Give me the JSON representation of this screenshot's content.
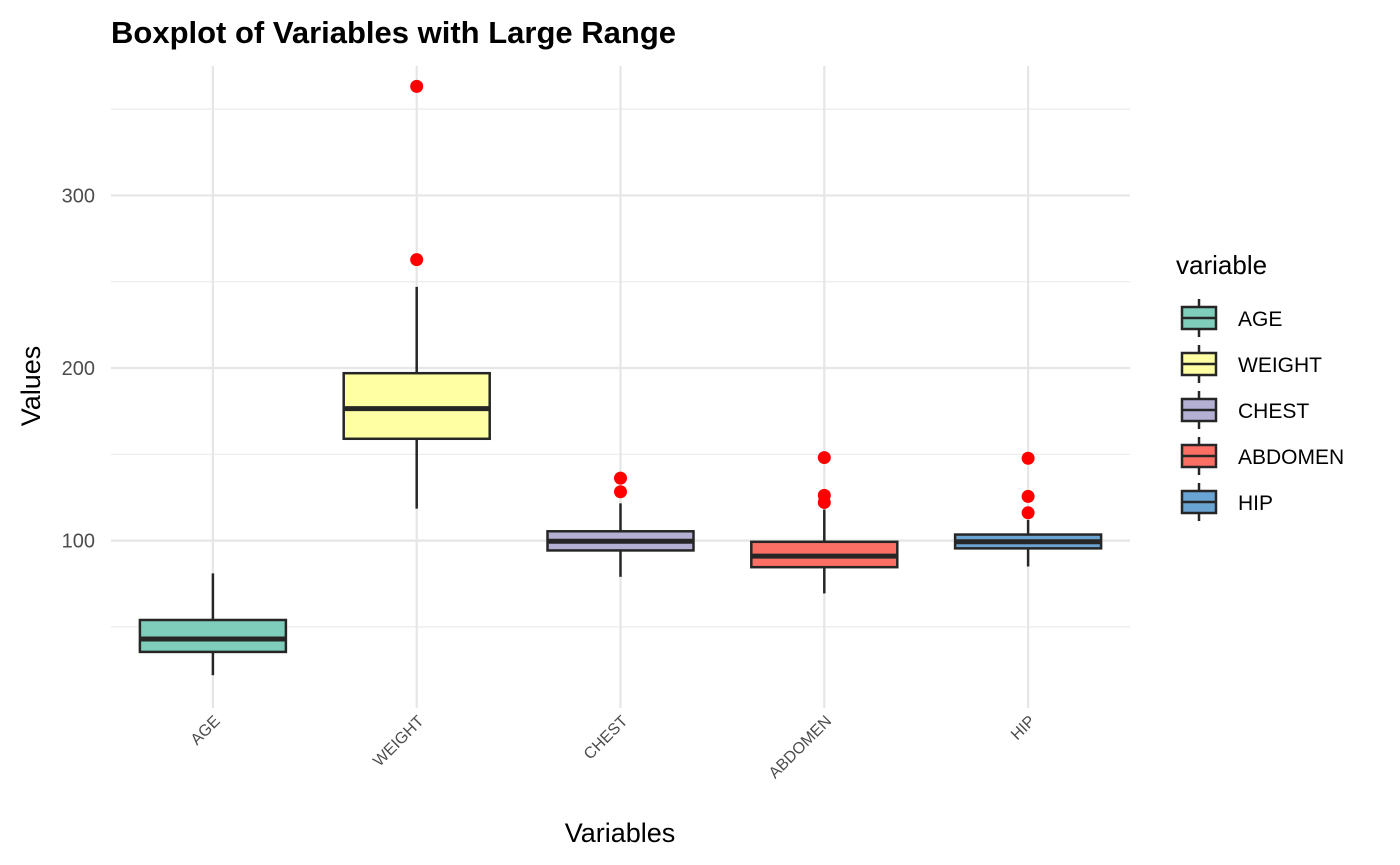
{
  "chart_data": {
    "type": "boxplot",
    "title": "Boxplot of Variables with Large Range",
    "xlabel": "Variables",
    "ylabel": "Values",
    "ylim": [
      3,
      375
    ],
    "yticks": [
      100,
      200,
      300
    ],
    "grid": true,
    "legend": {
      "title": "variable",
      "position": "right"
    },
    "outlier_color": "#ff0000",
    "categories": [
      "AGE",
      "WEIGHT",
      "CHEST",
      "ABDOMEN",
      "HIP"
    ],
    "series": [
      {
        "name": "AGE",
        "color": "#7fcdbb",
        "whisker_low": 22,
        "q1": 35.5,
        "median": 43,
        "q3": 54,
        "whisker_high": 81,
        "outliers": []
      },
      {
        "name": "WEIGHT",
        "color": "#ffffa3",
        "whisker_low": 118.5,
        "q1": 159,
        "median": 176.5,
        "q3": 197,
        "whisker_high": 247,
        "outliers": [
          262.8,
          363.2
        ]
      },
      {
        "name": "CHEST",
        "color": "#b3b0d4",
        "whisker_low": 79,
        "q1": 94.3,
        "median": 99.6,
        "q3": 105.4,
        "whisker_high": 121.6,
        "outliers": [
          128.3,
          136.2
        ]
      },
      {
        "name": "ABDOMEN",
        "color": "#fb6f64",
        "whisker_low": 69.4,
        "q1": 84.6,
        "median": 91,
        "q3": 99.3,
        "whisker_high": 118,
        "outliers": [
          122.1,
          126.2,
          148.1
        ]
      },
      {
        "name": "HIP",
        "color": "#6aa4d2",
        "whisker_low": 85,
        "q1": 95.5,
        "median": 99.3,
        "q3": 103.5,
        "whisker_high": 112,
        "outliers": [
          116.1,
          125.6,
          147.7
        ]
      }
    ]
  }
}
